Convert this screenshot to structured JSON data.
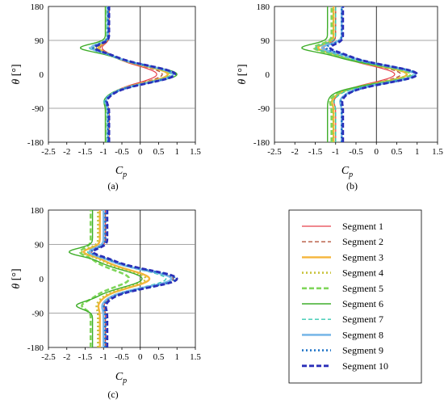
{
  "series_styles": [
    {
      "name": "Segment 1",
      "color": "#e8424a",
      "dash": "",
      "width": 1.2
    },
    {
      "name": "Segment 2",
      "color": "#b5553d",
      "dash": "5,3",
      "width": 1.4
    },
    {
      "name": "Segment 3",
      "color": "#f5b53a",
      "dash": "",
      "width": 2.4
    },
    {
      "name": "Segment 4",
      "color": "#c8c23a",
      "dash": "2,3",
      "width": 2.6
    },
    {
      "name": "Segment 5",
      "color": "#7fd65a",
      "dash": "6,3",
      "width": 2.6
    },
    {
      "name": "Segment 6",
      "color": "#3fae2a",
      "dash": "",
      "width": 1.4
    },
    {
      "name": "Segment 7",
      "color": "#39c9b0",
      "dash": "5,3",
      "width": 1.4
    },
    {
      "name": "Segment 8",
      "color": "#7ab8e8",
      "dash": "",
      "width": 2.6
    },
    {
      "name": "Segment 9",
      "color": "#1f74c8",
      "dash": "2,3",
      "width": 2.6
    },
    {
      "name": "Segment 10",
      "color": "#2a2fb8",
      "dash": "6,3",
      "width": 2.8
    }
  ],
  "chart_data": [
    {
      "type": "line",
      "panel": "(a)",
      "xlabel": "Cp",
      "ylabel": "θ [°]",
      "xlim": [
        -2.5,
        1.5
      ],
      "ylim": [
        -180,
        180
      ],
      "xticks": [
        "-2.5",
        "-2",
        "-1.5",
        "-1",
        "-0.5",
        "0",
        "0.5",
        "1",
        "1.5"
      ],
      "yticks": [
        "180",
        "90",
        "0",
        "-90",
        "-180"
      ],
      "grid_y": [
        90,
        -90
      ],
      "series": [
        {
          "params": [
            -0.85,
            -1.05,
            0.45,
            -0.95
          ]
        },
        {
          "params": [
            -0.85,
            -1.1,
            0.6,
            -0.95
          ]
        },
        {
          "params": [
            -0.88,
            -1.15,
            0.75,
            -0.95
          ]
        },
        {
          "params": [
            -0.88,
            -1.2,
            0.8,
            -0.95
          ]
        },
        {
          "params": [
            -0.9,
            -1.3,
            0.85,
            -0.98
          ]
        },
        {
          "params": [
            -0.95,
            -1.65,
            1.0,
            -1.0
          ]
        },
        {
          "params": [
            -0.9,
            -1.4,
            0.85,
            -1.0
          ]
        },
        {
          "params": [
            -0.88,
            -1.35,
            0.9,
            -0.95
          ]
        },
        {
          "params": [
            -0.88,
            -1.3,
            0.92,
            -0.95
          ]
        },
        {
          "params": [
            -0.85,
            -1.25,
            0.95,
            -0.92
          ]
        }
      ]
    },
    {
      "type": "line",
      "panel": "(b)",
      "xlabel": "Cp",
      "ylabel": "θ [°]",
      "xlim": [
        -2.5,
        1.5
      ],
      "ylim": [
        -180,
        180
      ],
      "xticks": [
        "-2.5",
        "-2",
        "-1.5",
        "-1",
        "-0.5",
        "0",
        "0.5",
        "1",
        "1.5"
      ],
      "yticks": [
        "180",
        "90",
        "0",
        "-90",
        "-180"
      ],
      "grid_y": [
        90,
        -90
      ],
      "series": [
        {
          "params": [
            -1.0,
            -1.3,
            0.45,
            -1.05
          ]
        },
        {
          "params": [
            -1.0,
            -1.35,
            0.6,
            -1.05
          ]
        },
        {
          "params": [
            -1.05,
            -1.45,
            0.75,
            -1.1
          ]
        },
        {
          "params": [
            -1.05,
            -1.5,
            0.75,
            -1.1
          ]
        },
        {
          "params": [
            -1.1,
            -1.55,
            0.85,
            -1.15
          ]
        },
        {
          "params": [
            -1.2,
            -1.85,
            0.95,
            -1.2
          ]
        },
        {
          "params": [
            -1.0,
            -1.5,
            0.9,
            -1.05
          ]
        },
        {
          "params": [
            -0.85,
            -1.35,
            0.95,
            -0.9
          ]
        },
        {
          "params": [
            -0.85,
            -1.25,
            1.0,
            -0.88
          ]
        },
        {
          "params": [
            -0.82,
            -1.15,
            1.0,
            -0.85
          ]
        }
      ]
    },
    {
      "type": "line",
      "panel": "(c)",
      "xlabel": "Cp",
      "ylabel": "θ [°]",
      "xlim": [
        -2.5,
        1.5
      ],
      "ylim": [
        -180,
        180
      ],
      "xticks": [
        "-2.5",
        "-2",
        "-1.5",
        "-1",
        "-0.5",
        "0",
        "0.5",
        "1",
        "1.5"
      ],
      "yticks": [
        "180",
        "90",
        "0",
        "-90",
        "-180"
      ],
      "grid_y": [
        90,
        -90
      ],
      "series": [
        {
          "params": [
            -0.95,
            -1.35,
            0.85,
            -1.0
          ]
        },
        {
          "params": [
            -0.95,
            -1.4,
            0.9,
            -1.0
          ]
        },
        {
          "params": [
            -1.1,
            -1.55,
            0.25,
            -1.15
          ]
        },
        {
          "params": [
            -1.15,
            -1.6,
            0.15,
            -1.2
          ]
        },
        {
          "params": [
            -1.35,
            -1.65,
            -0.3,
            -1.6
          ]
        },
        {
          "params": [
            -1.3,
            -1.95,
            0.05,
            -1.75
          ]
        },
        {
          "params": [
            -1.0,
            -1.45,
            0.7,
            -1.05
          ]
        },
        {
          "params": [
            -1.0,
            -1.4,
            0.85,
            -1.05
          ]
        },
        {
          "params": [
            -0.95,
            -1.35,
            0.95,
            -1.0
          ]
        },
        {
          "params": [
            -0.9,
            -1.3,
            1.0,
            -0.95
          ]
        }
      ]
    }
  ]
}
